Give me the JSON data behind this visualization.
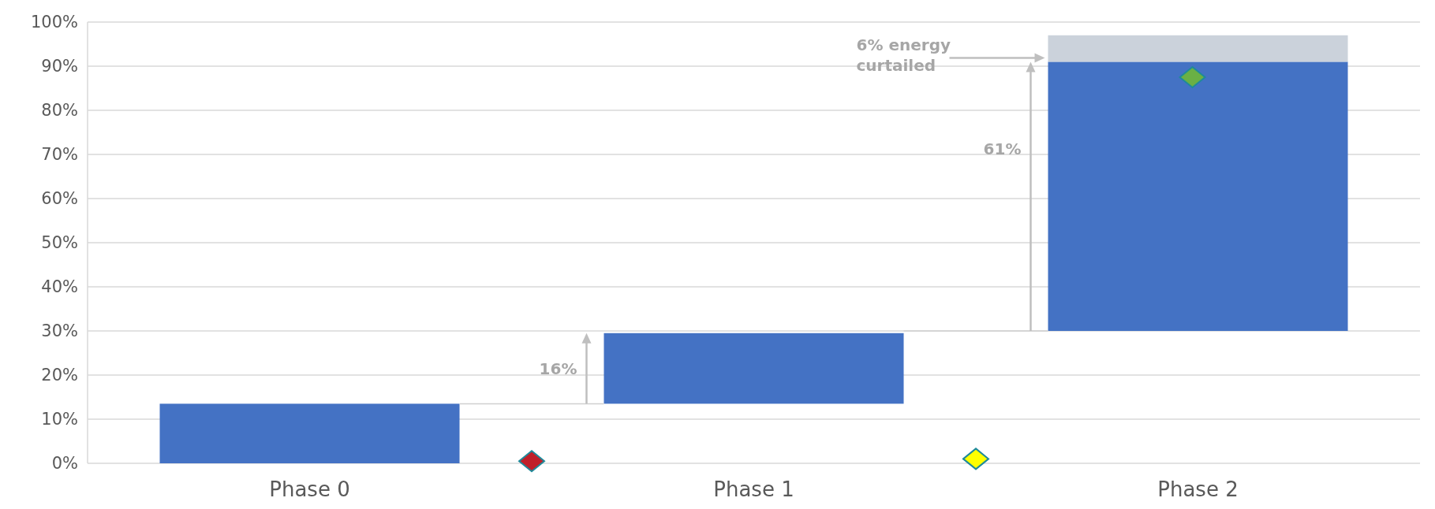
{
  "chart_data": {
    "type": "bar",
    "categories": [
      "Phase 0",
      "Phase 1",
      "Phase 2"
    ],
    "series": [
      {
        "color": "#4472c4",
        "values": [
          13.5,
          16,
          61
        ],
        "base": [
          0,
          13.5,
          30
        ]
      },
      {
        "color": "#cbd2db",
        "values": [
          null,
          null,
          6
        ],
        "base": [
          null,
          null,
          91
        ]
      }
    ],
    "ylim": [
      0,
      100
    ],
    "yticks": [
      {
        "value": 0,
        "label": "0%"
      },
      {
        "value": 10,
        "label": "10%"
      },
      {
        "value": 20,
        "label": "20%"
      },
      {
        "value": 30,
        "label": "30%"
      },
      {
        "value": 40,
        "label": "40%"
      },
      {
        "value": 50,
        "label": "50%"
      },
      {
        "value": 60,
        "label": "60%"
      },
      {
        "value": 70,
        "label": "70%"
      },
      {
        "value": 80,
        "label": "80%"
      },
      {
        "value": 90,
        "label": "90%"
      },
      {
        "value": 100,
        "label": "100%"
      }
    ],
    "grid": "y",
    "annotations": [
      "16%",
      "61%",
      "6% energy curtailed"
    ]
  }
}
